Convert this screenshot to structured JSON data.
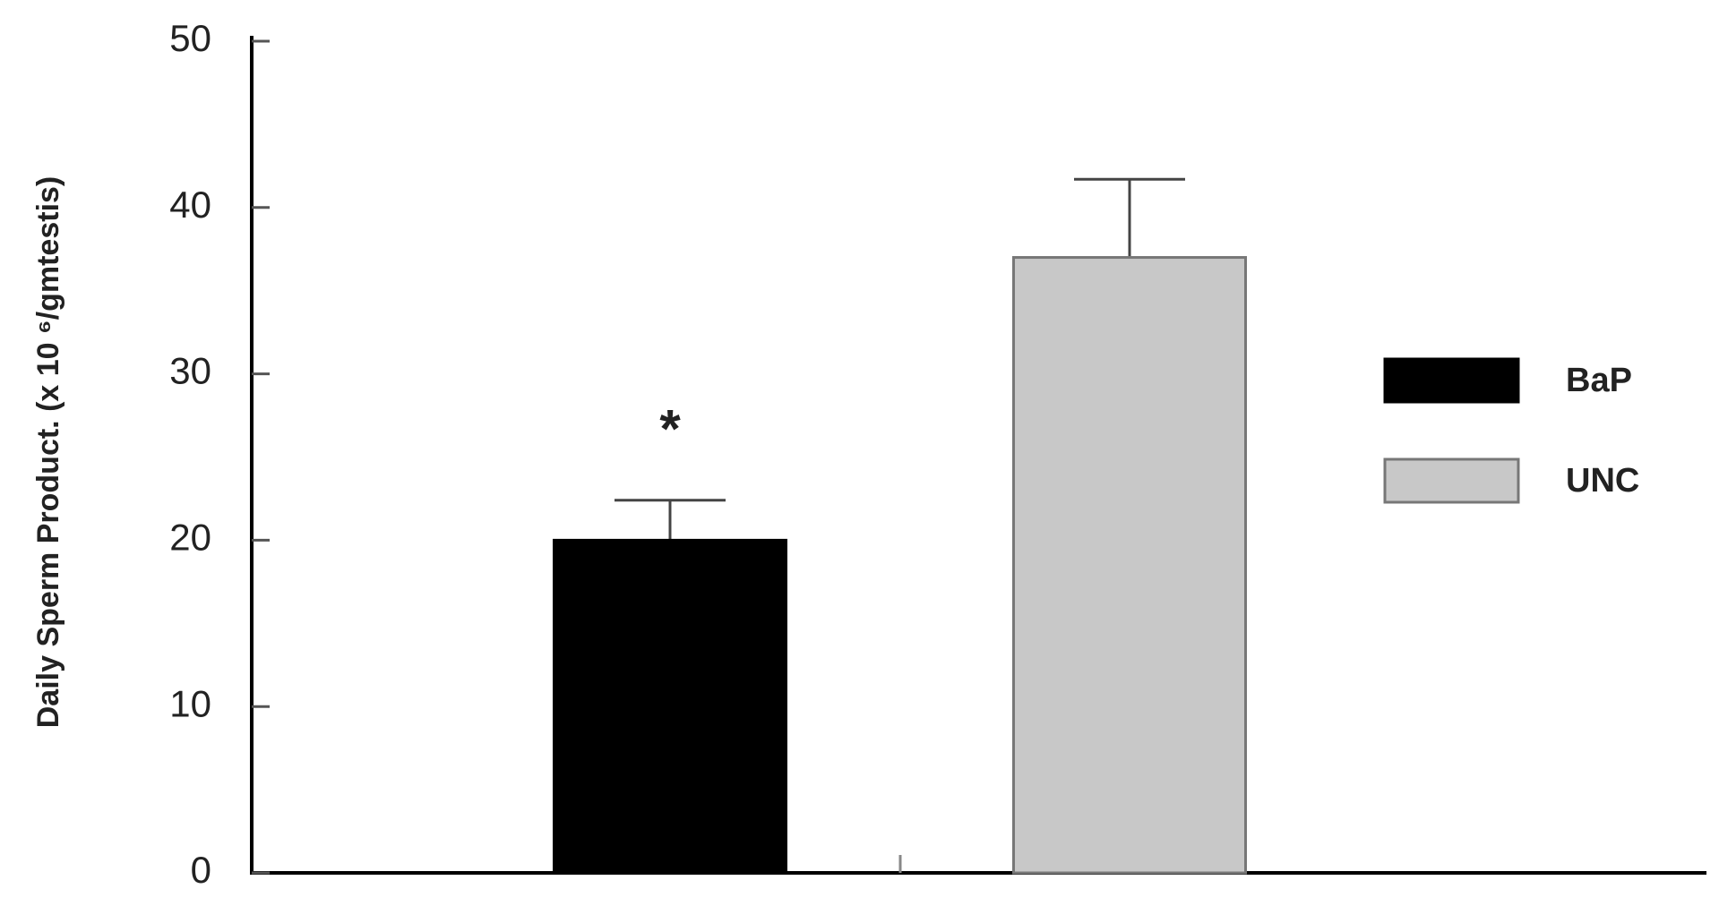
{
  "chart_data": {
    "type": "bar",
    "y_label": "Daily Sperm Product. (x 10 ⁶/gmtestis)",
    "series": [
      {
        "name": "BaP",
        "color": "#000000",
        "values": [
          20
        ],
        "errors": [
          2.4
        ]
      },
      {
        "name": "UNC",
        "color": "#c8c8c8",
        "values": [
          37
        ],
        "errors": [
          4.7
        ]
      }
    ],
    "annotations": [
      {
        "text": "*",
        "series": 0
      }
    ],
    "ylim": [
      0,
      50
    ],
    "yticks": [
      0,
      10,
      20,
      30,
      40,
      50
    ],
    "grid": false,
    "legend": "right"
  }
}
